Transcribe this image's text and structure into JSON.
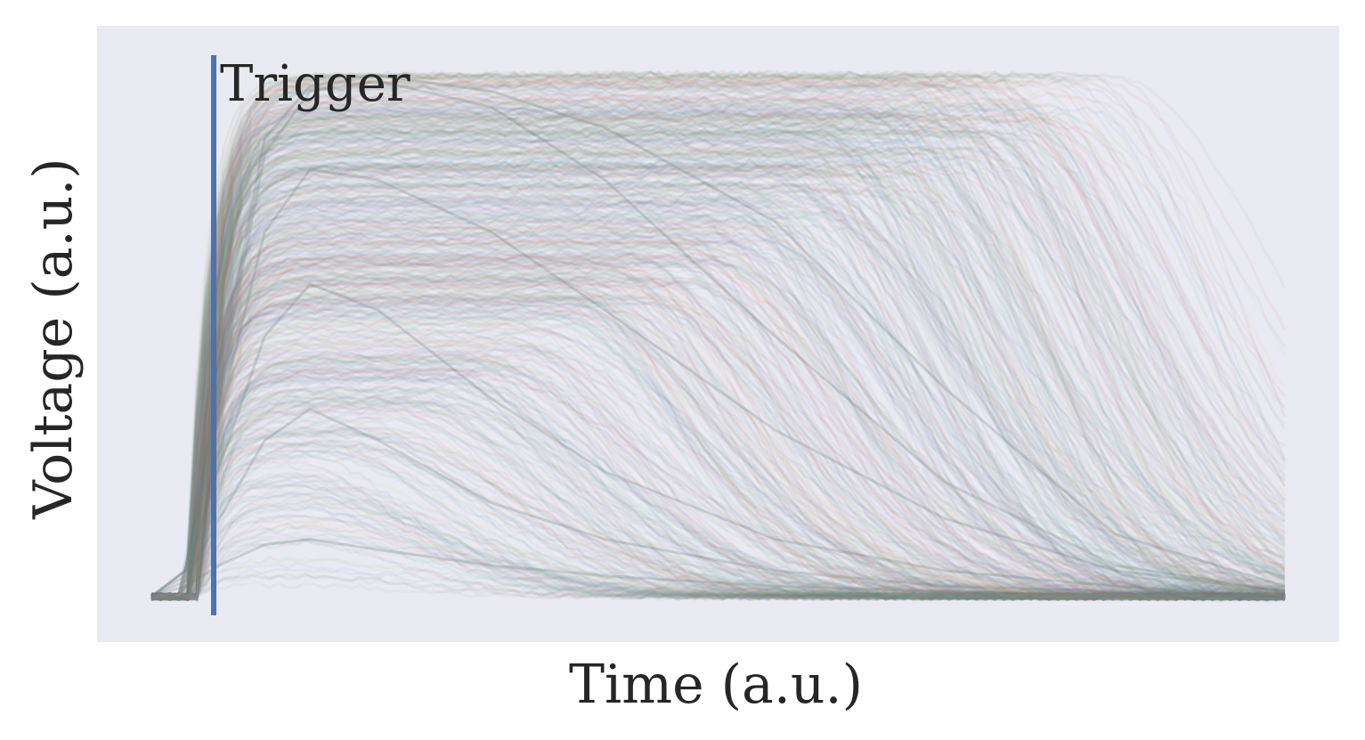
{
  "chart_data": {
    "type": "line",
    "title": "",
    "xlabel": "Time (a.u.)",
    "ylabel": "Voltage (a.u.)",
    "x_ticks": [],
    "y_ticks": [],
    "grid": false,
    "legend": "none",
    "xlim": [
      0,
      100
    ],
    "ylim": [
      -0.05,
      1.05
    ],
    "trigger": {
      "label": "Trigger",
      "x": 5.5,
      "color": "#4c72b0"
    },
    "baseline": 0.0,
    "pulse_rise_start_x": 3.0,
    "pulse_peak_range_x": [
      14,
      32
    ],
    "pulse_end_x": 100,
    "max_amplitude": 1.0,
    "series": [
      {
        "x": [
          0,
          3,
          6,
          10,
          14,
          20,
          30,
          40,
          55,
          70,
          85,
          100
        ],
        "values": [
          0,
          0.02,
          0.06,
          0.1,
          0.11,
          0.09,
          0.06,
          0.04,
          0.02,
          0.01,
          0.0,
          0.0
        ]
      },
      {
        "x": [
          0,
          3,
          6,
          10,
          14,
          20,
          30,
          40,
          55,
          70,
          85,
          100
        ],
        "values": [
          0,
          0.03,
          0.15,
          0.3,
          0.36,
          0.3,
          0.18,
          0.11,
          0.05,
          0.02,
          0.01,
          0.0
        ]
      },
      {
        "x": [
          0,
          3,
          6,
          10,
          14,
          20,
          30,
          40,
          55,
          70,
          85,
          100
        ],
        "values": [
          0,
          0.04,
          0.25,
          0.5,
          0.6,
          0.55,
          0.38,
          0.24,
          0.11,
          0.05,
          0.02,
          0.0
        ]
      },
      {
        "x": [
          0,
          3,
          6,
          10,
          14,
          20,
          30,
          40,
          55,
          70,
          85,
          100
        ],
        "values": [
          0,
          0.05,
          0.35,
          0.7,
          0.82,
          0.8,
          0.7,
          0.55,
          0.32,
          0.15,
          0.05,
          0.01
        ]
      },
      {
        "x": [
          0,
          3,
          6,
          10,
          14,
          20,
          30,
          40,
          55,
          70,
          85,
          100
        ],
        "values": [
          0,
          0.05,
          0.4,
          0.85,
          0.97,
          0.99,
          0.94,
          0.8,
          0.5,
          0.22,
          0.06,
          0.01
        ]
      },
      {
        "x": [
          0,
          3,
          6,
          10,
          14,
          20,
          30,
          40,
          55,
          70,
          85,
          100
        ],
        "values": [
          0,
          0.05,
          0.42,
          0.88,
          0.98,
          1.0,
          0.97,
          0.9,
          0.72,
          0.4,
          0.12,
          0.02
        ]
      }
    ]
  }
}
